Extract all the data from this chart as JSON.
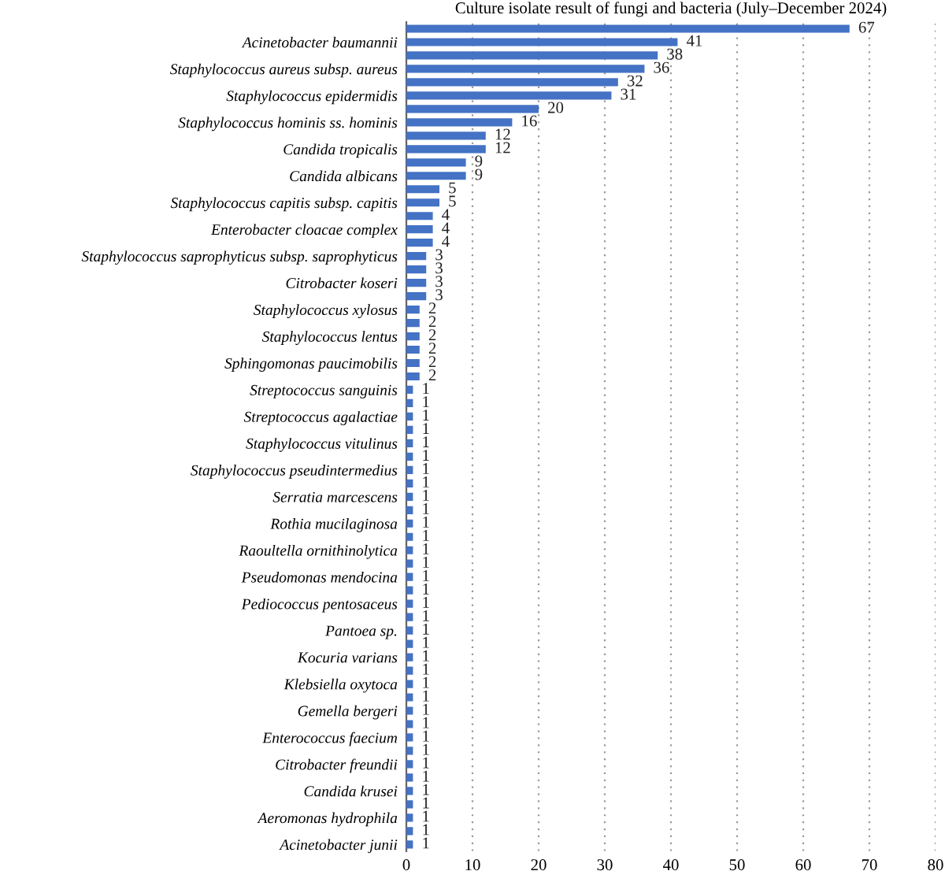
{
  "chart_data": {
    "type": "bar",
    "orientation": "horizontal",
    "title": "Culture isolate result of fungi and bacteria (July–December 2024)",
    "categories": [
      null,
      "Acinetobacter baumannii",
      null,
      "Staphylococcus aureus subsp. aureus",
      null,
      "Staphylococcus epidermidis",
      null,
      "Staphylococcus hominis ss. hominis",
      null,
      "Candida tropicalis",
      null,
      "Candida albicans",
      null,
      "Staphylococcus capitis subsp. capitis",
      null,
      "Enterobacter cloacae complex",
      null,
      "Staphylococcus saprophyticus subsp. saprophyticus",
      null,
      "Citrobacter koseri",
      null,
      "Staphylococcus xylosus",
      null,
      "Staphylococcus lentus",
      null,
      "Sphingomonas paucimobilis",
      null,
      "Streptococcus sanguinis",
      null,
      "Streptococcus agalactiae",
      null,
      "Staphylococcus vitulinus",
      null,
      "Staphylococcus pseudintermedius",
      null,
      "Serratia marcescens",
      null,
      "Rothia mucilaginosa",
      null,
      "Raoultella ornithinolytica",
      null,
      "Pseudomonas mendocina",
      null,
      "Pediococcus pentosaceus",
      null,
      "Pantoea sp.",
      null,
      "Kocuria varians",
      null,
      "Klebsiella oxytoca",
      null,
      "Gemella bergeri",
      null,
      "Enterococcus faecium",
      null,
      "Citrobacter freundii",
      null,
      "Candida krusei",
      null,
      "Aeromonas hydrophila",
      null,
      "Acinetobacter junii"
    ],
    "values": [
      67,
      41,
      38,
      36,
      32,
      31,
      20,
      16,
      12,
      12,
      9,
      9,
      5,
      5,
      4,
      4,
      4,
      3,
      3,
      3,
      3,
      2,
      2,
      2,
      2,
      2,
      2,
      1,
      1,
      1,
      1,
      1,
      1,
      1,
      1,
      1,
      1,
      1,
      1,
      1,
      1,
      1,
      1,
      1,
      1,
      1,
      1,
      1,
      1,
      1,
      1,
      1,
      1,
      1,
      1,
      1,
      1,
      1,
      1,
      1,
      1,
      1
    ],
    "color": "#4472c4",
    "xlim": [
      0,
      80
    ],
    "xticks": [
      0,
      10,
      20,
      30,
      40,
      50,
      60,
      70,
      80
    ],
    "grid": "x",
    "data_labels": true
  }
}
